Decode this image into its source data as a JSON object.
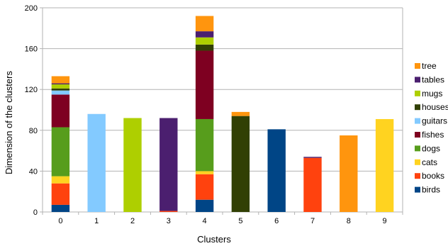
{
  "chart_data": {
    "type": "bar",
    "stacked": true,
    "xlabel": "Clusters",
    "ylabel": "Dimension of the clusters",
    "ylim": [
      0,
      200
    ],
    "yticks": [
      0,
      40,
      80,
      120,
      160,
      200
    ],
    "grid": true,
    "legend_position": "right",
    "categories": [
      "0",
      "1",
      "2",
      "3",
      "4",
      "5",
      "6",
      "7",
      "8",
      "9"
    ],
    "series": [
      {
        "name": "birds",
        "color": "#004586",
        "values": [
          7,
          0,
          0,
          0,
          12,
          0,
          81,
          0,
          0,
          0
        ]
      },
      {
        "name": "books",
        "color": "#ff420e",
        "values": [
          21,
          0,
          0,
          1,
          25,
          0,
          0,
          53,
          0,
          0
        ]
      },
      {
        "name": "cats",
        "color": "#ffd320",
        "values": [
          7,
          0,
          0,
          0,
          3,
          0,
          0,
          0,
          0,
          91
        ]
      },
      {
        "name": "dogs",
        "color": "#579d1c",
        "values": [
          48,
          0,
          0,
          0,
          51,
          0,
          0,
          0,
          0,
          0
        ]
      },
      {
        "name": "fishes",
        "color": "#7e0021",
        "values": [
          32,
          0,
          0,
          0,
          67,
          0,
          0,
          0,
          0,
          0
        ]
      },
      {
        "name": "guitars",
        "color": "#83caff",
        "values": [
          4,
          96,
          0,
          0,
          0,
          0,
          0,
          0,
          0,
          0
        ]
      },
      {
        "name": "houses",
        "color": "#314004",
        "values": [
          2,
          0,
          0,
          0,
          6,
          94,
          0,
          0,
          0,
          0
        ]
      },
      {
        "name": "mugs",
        "color": "#aecf00",
        "values": [
          4,
          0,
          92,
          0,
          7,
          0,
          0,
          0,
          0,
          0
        ]
      },
      {
        "name": "tables",
        "color": "#4b1f6f",
        "values": [
          1,
          0,
          0,
          91,
          6,
          0,
          0,
          1,
          0,
          0
        ]
      },
      {
        "name": "tree",
        "color": "#ff950e",
        "values": [
          7,
          0,
          0,
          0,
          15,
          4,
          0,
          0,
          75,
          0
        ]
      }
    ]
  }
}
